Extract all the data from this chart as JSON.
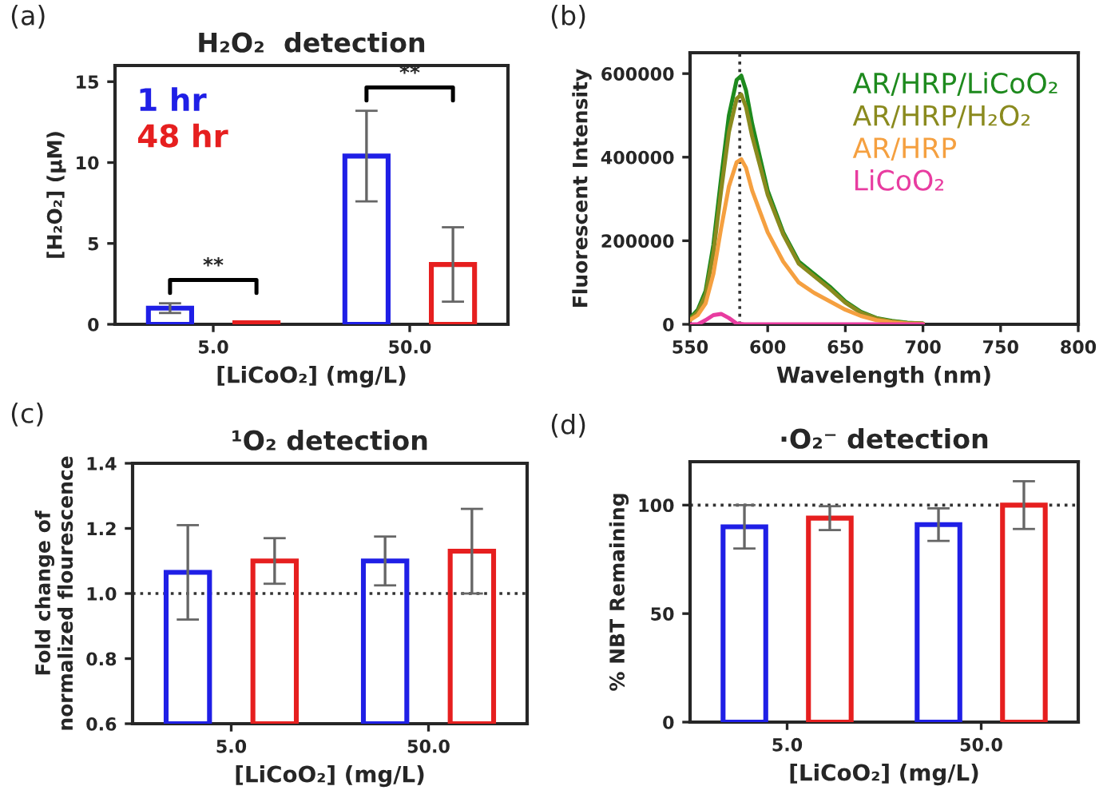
{
  "chart_data": [
    {
      "type": "bar",
      "title": "H₂O₂  detection",
      "ylabel": "[H₂O₂] (µM)",
      "xlabel": "[LiCoO₂] (mg/L)",
      "categories": [
        "5.0",
        "50.0"
      ],
      "ylim": [
        0,
        16
      ],
      "yticks": [
        0,
        5,
        10,
        15
      ],
      "legend": "top left",
      "grid": false,
      "series": [
        {
          "name": "1 hr",
          "color": "#1f1fe6",
          "values": [
            1.0,
            10.4
          ],
          "errors": [
            0.3,
            2.8
          ]
        },
        {
          "name": "48 hr",
          "color": "#e61f1f",
          "values": [
            0.1,
            3.7
          ],
          "errors": [
            null,
            2.3
          ]
        }
      ],
      "annotations": [
        "(a)",
        "**",
        "**"
      ]
    },
    {
      "type": "line",
      "xlabel": "Wavelength (nm)",
      "ylabel": "Fluorescent Intensity",
      "xlim": [
        550,
        800
      ],
      "xticks": [
        550,
        600,
        650,
        700,
        750,
        800
      ],
      "ylim": [
        0,
        650000
      ],
      "yticks": [
        0,
        200000,
        400000,
        600000
      ],
      "legend": "top right",
      "grid": false,
      "line_style": "solid",
      "ref_lines": [
        {
          "axis": "x",
          "value": 582,
          "line_style": "dotted",
          "color": "#333333"
        }
      ],
      "annotations": [
        "(b)"
      ],
      "series": [
        {
          "name": "AR/HRP/LiCoO₂",
          "color": "#1e8a1e",
          "x": [
            550,
            555,
            560,
            565,
            570,
            575,
            580,
            583,
            586,
            590,
            595,
            600,
            610,
            620,
            630,
            640,
            650,
            660,
            670,
            680,
            690,
            700
          ],
          "values": [
            15000,
            35000,
            80000,
            190000,
            350000,
            500000,
            585000,
            595000,
            560000,
            480000,
            400000,
            320000,
            220000,
            150000,
            120000,
            90000,
            55000,
            30000,
            15000,
            8000,
            4000,
            2000
          ]
        },
        {
          "name": "AR/HRP/H₂O₂",
          "color": "#8a8a1e",
          "x": [
            550,
            555,
            560,
            565,
            570,
            575,
            580,
            583,
            586,
            590,
            595,
            600,
            610,
            620,
            630,
            640,
            650,
            660,
            670,
            680,
            690,
            700
          ],
          "values": [
            12000,
            30000,
            70000,
            170000,
            320000,
            460000,
            540000,
            550000,
            520000,
            450000,
            380000,
            310000,
            215000,
            145000,
            115000,
            85000,
            52000,
            28000,
            14000,
            7000,
            3000,
            2000
          ]
        },
        {
          "name": "AR/HRP",
          "color": "#f5a040",
          "x": [
            550,
            555,
            560,
            565,
            570,
            575,
            580,
            583,
            586,
            590,
            595,
            600,
            610,
            620,
            630,
            640,
            650,
            660,
            670,
            680,
            690,
            700
          ],
          "values": [
            10000,
            22000,
            50000,
            120000,
            230000,
            330000,
            388000,
            395000,
            375000,
            320000,
            270000,
            220000,
            150000,
            100000,
            75000,
            55000,
            35000,
            20000,
            10000,
            5000,
            2000,
            1000
          ]
        },
        {
          "name": "LiCoO₂",
          "color": "#e83ca0",
          "x": [
            550,
            555,
            560,
            565,
            570,
            575,
            580,
            585,
            600,
            650,
            700
          ],
          "values": [
            0,
            0,
            10000,
            22000,
            25000,
            15000,
            2000,
            0,
            0,
            0,
            0
          ]
        }
      ]
    },
    {
      "type": "bar",
      "title": "¹O₂ detection",
      "ylabel": "Fold change of\nnormalized flourescence",
      "xlabel": "[LiCoO₂] (mg/L)",
      "categories": [
        "5.0",
        "50.0"
      ],
      "ylim": [
        0.6,
        1.4
      ],
      "yticks": [
        0.6,
        0.8,
        {
          "value": 1.0,
          "label": "1.0"
        },
        1.2,
        1.4
      ],
      "grid": false,
      "ref_lines": [
        {
          "axis": "y",
          "value": 1.0,
          "line_style": "dotted",
          "color": "#333333"
        }
      ],
      "series": [
        {
          "color": "#1f1fe6",
          "values": [
            1.065,
            1.1
          ],
          "errors": [
            0.145,
            0.075
          ]
        },
        {
          "color": "#e61f1f",
          "values": [
            1.1,
            1.13
          ],
          "errors": [
            0.07,
            0.13
          ]
        }
      ],
      "annotations": [
        "(c)"
      ]
    },
    {
      "type": "bar",
      "title": "·O₂⁻ detection",
      "ylabel": "% NBT Remaining",
      "xlabel": "[LiCoO₂] (mg/L)",
      "categories": [
        "5.0",
        "50.0"
      ],
      "ylim": [
        0,
        120
      ],
      "yticks": [
        0,
        50,
        100
      ],
      "grid": false,
      "ref_lines": [
        {
          "axis": "y",
          "value": 100,
          "line_style": "dotted",
          "color": "#333333"
        }
      ],
      "series": [
        {
          "color": "#1f1fe6",
          "values": [
            90,
            91
          ],
          "errors": [
            10,
            7.5
          ]
        },
        {
          "color": "#e61f1f",
          "values": [
            94,
            100
          ],
          "errors": [
            5.5,
            11
          ]
        }
      ],
      "annotations": [
        "(d)"
      ]
    }
  ]
}
